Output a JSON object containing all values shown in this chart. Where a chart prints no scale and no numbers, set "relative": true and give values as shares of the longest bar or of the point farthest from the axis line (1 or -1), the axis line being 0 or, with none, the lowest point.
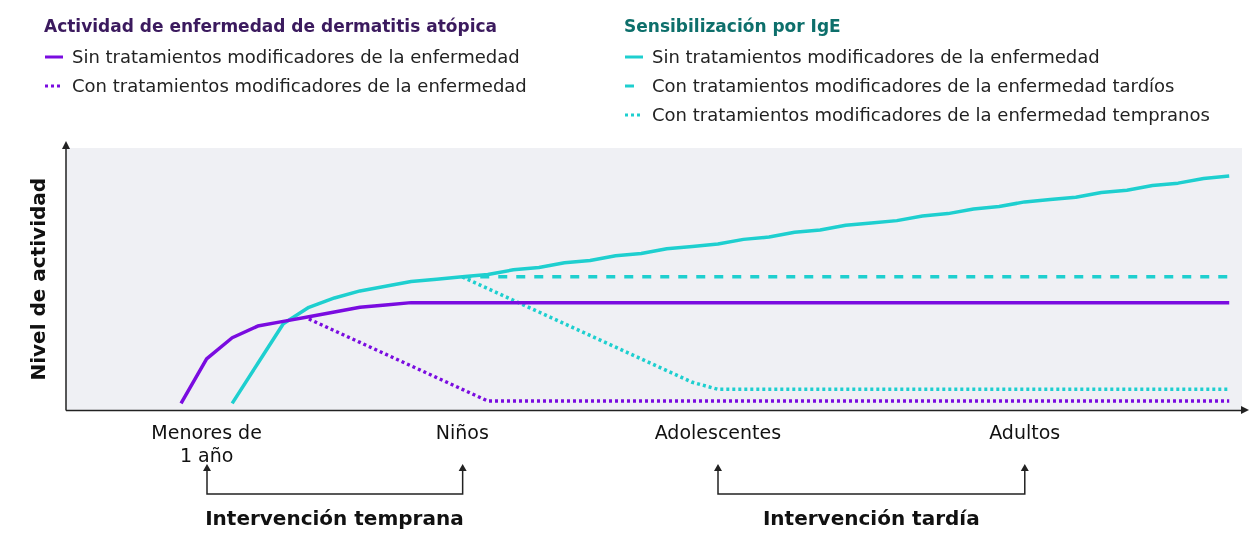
{
  "chart_data": {
    "type": "line",
    "relative": true,
    "ylabel": "Nivel de actividad",
    "legend": "top",
    "legend_title": [
      "Actividad de enfermedad de dermatitis atópica",
      "Sensibilización por IgE"
    ],
    "categories": [
      null,
      null,
      null,
      null,
      null,
      "Menores de 1 año",
      null,
      null,
      null,
      null,
      null,
      null,
      null,
      null,
      null,
      "Niños",
      null,
      null,
      null,
      null,
      null,
      null,
      null,
      null,
      null,
      "Adolescentes",
      null,
      null,
      null,
      null,
      null,
      null,
      null,
      null,
      null,
      null,
      null,
      "Adultos",
      null,
      null,
      null,
      null,
      null,
      null,
      null,
      null
    ],
    "annotations": [
      "Intervención temprana",
      "Intervención tardía"
    ],
    "series": [
      {
        "name": "Sin tratamientos modificadores de la enfermedad",
        "color": "#7a0ce0",
        "line_style": "solid",
        "values": [
          null,
          null,
          null,
          null,
          0.03,
          0.22,
          0.31,
          0.36,
          0.38,
          0.4,
          0.42,
          0.44,
          0.45,
          0.46,
          0.46,
          0.46,
          0.46,
          0.46,
          0.46,
          0.46,
          0.46,
          0.46,
          0.46,
          0.46,
          0.46,
          0.46,
          0.46,
          0.46,
          0.46,
          0.46,
          0.46,
          0.46,
          0.46,
          0.46,
          0.46,
          0.46,
          0.46,
          0.46,
          0.46,
          0.46,
          0.46,
          0.46,
          0.46,
          0.46,
          0.46,
          0.46
        ]
      },
      {
        "name": "Con tratamientos modificadores de la enfermedad",
        "color": "#7a0ce0",
        "line_style": "dotted",
        "values": [
          null,
          null,
          null,
          null,
          null,
          null,
          null,
          null,
          null,
          0.39,
          0.34,
          0.29,
          0.24,
          0.19,
          0.14,
          0.09,
          0.04,
          0.04,
          0.04,
          0.04,
          0.04,
          0.04,
          0.04,
          0.04,
          0.04,
          0.04,
          0.04,
          0.04,
          0.04,
          0.04,
          0.04,
          0.04,
          0.04,
          0.04,
          0.04,
          0.04,
          0.04,
          0.04,
          0.04,
          0.04,
          0.04,
          0.04,
          0.04,
          0.04,
          0.04,
          0.04
        ]
      },
      {
        "name": "Sin tratamientos modificadores de la enfermedad",
        "color": "#1ecfcf",
        "line_style": "solid",
        "values": [
          null,
          null,
          null,
          null,
          null,
          null,
          0.03,
          0.2,
          0.37,
          0.44,
          0.48,
          0.51,
          0.53,
          0.55,
          0.56,
          0.57,
          0.58,
          0.6,
          0.61,
          0.63,
          0.64,
          0.66,
          0.67,
          0.69,
          0.7,
          0.71,
          0.73,
          0.74,
          0.76,
          0.77,
          0.79,
          0.8,
          0.81,
          0.83,
          0.84,
          0.86,
          0.87,
          0.89,
          0.9,
          0.91,
          0.93,
          0.94,
          0.96,
          0.97,
          0.99,
          1
        ]
      },
      {
        "name": "Con tratamientos modificadores de la enfermedad tardíos",
        "color": "#1ecfcf",
        "line_style": "dashed",
        "values": [
          null,
          null,
          null,
          null,
          null,
          null,
          null,
          null,
          null,
          null,
          null,
          null,
          null,
          null,
          null,
          0.57,
          0.57,
          0.57,
          0.57,
          0.57,
          0.57,
          0.57,
          0.57,
          0.57,
          0.57,
          0.57,
          0.57,
          0.57,
          0.57,
          0.57,
          0.57,
          0.57,
          0.57,
          0.57,
          0.57,
          0.57,
          0.57,
          0.57,
          0.57,
          0.57,
          0.57,
          0.57,
          0.57,
          0.57,
          0.57,
          0.57
        ]
      },
      {
        "name": "Con tratamientos modificadores de la enfermedad tempranos",
        "color": "#1ecfcf",
        "line_style": "dotted",
        "values": [
          null,
          null,
          null,
          null,
          null,
          null,
          null,
          null,
          null,
          null,
          null,
          null,
          null,
          null,
          null,
          0.57,
          0.52,
          0.47,
          0.42,
          0.37,
          0.32,
          0.27,
          0.22,
          0.17,
          0.12,
          0.09,
          0.09,
          0.09,
          0.09,
          0.09,
          0.09,
          0.09,
          0.09,
          0.09,
          0.09,
          0.09,
          0.09,
          0.09,
          0.09,
          0.09,
          0.09,
          0.09,
          0.09,
          0.09,
          0.09,
          0.09
        ]
      }
    ]
  }
}
